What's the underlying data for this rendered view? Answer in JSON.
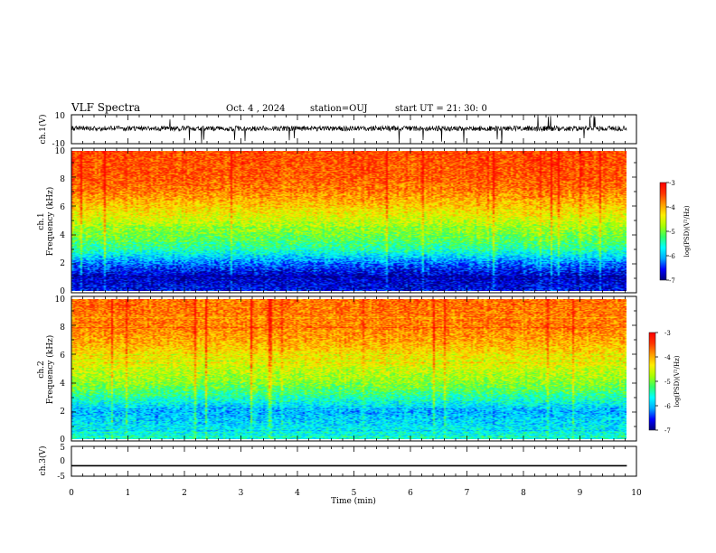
{
  "header": {
    "title": "VLF Spectra",
    "date": "Oct. 4 , 2024",
    "station": "station=OUJ",
    "start": "start  UT  =   21: 30: 0"
  },
  "colors": {
    "colormap": [
      "#00007a",
      "#0000ff",
      "#00aaff",
      "#00ffff",
      "#33ff66",
      "#aaff00",
      "#ffee00",
      "#ff9900",
      "#ff3300",
      "#ff0000"
    ]
  },
  "chart_data": [
    {
      "type": "line",
      "panel": "ch1-waveform",
      "ylabel": "ch.1(V)",
      "yticks": [
        "10",
        "-10"
      ],
      "ylim": [
        -10,
        10
      ],
      "xlim": [
        0,
        10
      ],
      "description_values": {
        "baseline": 0.5,
        "spread": 3.5
      }
    },
    {
      "type": "heatmap",
      "panel": "ch1-spectrogram",
      "ylabel_top": "ch.1",
      "ylabel": "Frequency  (kHz)",
      "yticks": [
        "0",
        "2",
        "4",
        "6",
        "8",
        "10"
      ],
      "ylim": [
        0,
        10
      ],
      "xlim": [
        0,
        9.83
      ],
      "log_psd_by_freq_khz": [
        [
          0,
          -6.6
        ],
        [
          1,
          -6.8
        ],
        [
          2,
          -6.2
        ],
        [
          3,
          -5.4
        ],
        [
          4,
          -5.0
        ],
        [
          5,
          -4.6
        ],
        [
          6,
          -4.2
        ],
        [
          7,
          -3.8
        ],
        [
          8,
          -3.6
        ],
        [
          10,
          -3.5
        ]
      ],
      "colorbar": {
        "label": "log(PSD)(V²/Hz)",
        "ticks": [
          "-3",
          "-4",
          "-5",
          "-6",
          "-7"
        ],
        "range": [
          -7,
          -3
        ]
      }
    },
    {
      "type": "heatmap",
      "panel": "ch2-spectrogram",
      "ylabel_top": "ch.2",
      "ylabel": "Frequency  (kHz)",
      "yticks": [
        "0",
        "2",
        "4",
        "6",
        "8",
        "10"
      ],
      "ylim": [
        0,
        10
      ],
      "xlim": [
        0,
        9.83
      ],
      "log_psd_by_freq_khz": [
        [
          0,
          -5.6
        ],
        [
          1,
          -5.8
        ],
        [
          2,
          -6.0
        ],
        [
          3,
          -5.4
        ],
        [
          4,
          -4.9
        ],
        [
          5,
          -4.6
        ],
        [
          6,
          -4.3
        ],
        [
          7,
          -4.0
        ],
        [
          8,
          -3.8
        ],
        [
          10,
          -3.7
        ]
      ],
      "colorbar": {
        "label": "log(PSD)(V²/Hz)",
        "ticks": [
          "-3",
          "-4",
          "-5",
          "-6",
          "-7"
        ],
        "range": [
          -7,
          -3
        ]
      }
    },
    {
      "type": "line",
      "panel": "ch3-waveform",
      "ylabel": "ch.3(V)",
      "yticks": [
        "5",
        "0",
        "-5"
      ],
      "ylim": [
        -5,
        5
      ],
      "xlim": [
        0,
        10
      ],
      "x": [
        0,
        9.83
      ],
      "y": [
        -1.5,
        -1.5
      ]
    }
  ],
  "xaxis": {
    "label": "Time  (min)",
    "ticks": [
      "0",
      "1",
      "2",
      "3",
      "4",
      "5",
      "6",
      "7",
      "8",
      "9",
      "10"
    ],
    "range": [
      0,
      10
    ]
  }
}
